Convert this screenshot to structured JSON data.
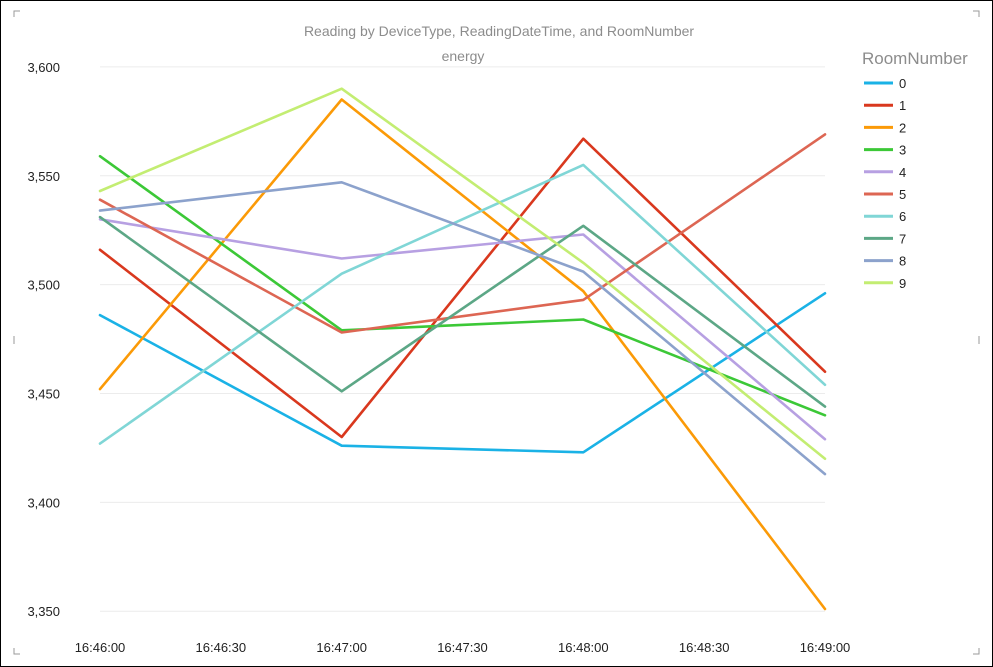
{
  "chart_data": {
    "type": "line",
    "title": "Reading by DeviceType, ReadingDateTime, and RoomNumber",
    "subtitle": "energy",
    "xlabel": "",
    "ylabel": "",
    "x_ticks": [
      "16:46:00",
      "16:46:30",
      "16:47:00",
      "16:47:30",
      "16:48:00",
      "16:48:30",
      "16:49:00"
    ],
    "x": [
      "16:46:00",
      "16:47:00",
      "16:48:00",
      "16:49:00"
    ],
    "ylim": [
      3340,
      3605
    ],
    "y_ticks": [
      3350,
      3400,
      3450,
      3500,
      3550,
      3600
    ],
    "y_tick_labels": [
      "3,350",
      "3,400",
      "3,450",
      "3,500",
      "3,550",
      "3,600"
    ],
    "grid": true,
    "legend": {
      "title": "RoomNumber",
      "placement": "right"
    },
    "series": [
      {
        "name": "0",
        "color": "#1ab2e6",
        "values": [
          3486,
          3426,
          3423,
          3496
        ]
      },
      {
        "name": "1",
        "color": "#d9381e",
        "values": [
          3516,
          3430,
          3567,
          3460
        ]
      },
      {
        "name": "2",
        "color": "#fb9a07",
        "values": [
          3452,
          3585,
          3497,
          3351
        ]
      },
      {
        "name": "3",
        "color": "#3cc837",
        "values": [
          3559,
          3479,
          3484,
          3440
        ]
      },
      {
        "name": "4",
        "color": "#b7a0e2",
        "values": [
          3530,
          3512,
          3523,
          3429
        ]
      },
      {
        "name": "5",
        "color": "#dd6653",
        "values": [
          3539,
          3478,
          3493,
          3569
        ]
      },
      {
        "name": "6",
        "color": "#80d6d6",
        "values": [
          3427,
          3505,
          3555,
          3454
        ]
      },
      {
        "name": "7",
        "color": "#5ca786",
        "values": [
          3531,
          3451,
          3527,
          3444
        ]
      },
      {
        "name": "8",
        "color": "#8ca2cc",
        "values": [
          3534,
          3547,
          3506,
          3413
        ]
      },
      {
        "name": "9",
        "color": "#c3ed72",
        "values": [
          3543,
          3590,
          3510,
          3420
        ]
      }
    ]
  }
}
